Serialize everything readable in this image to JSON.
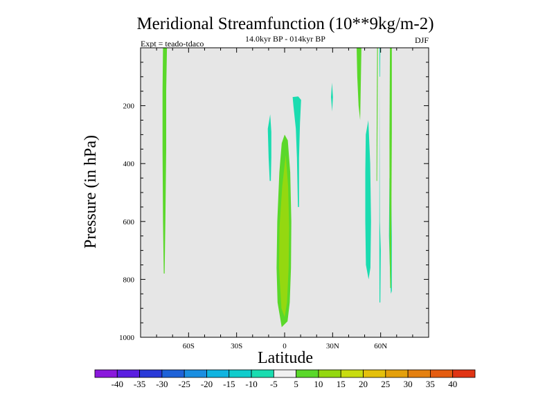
{
  "chart_data": {
    "type": "contour",
    "title": "Meridional Streamfunction (10**9kg/m-2)",
    "subtitle": "14.0kyr BP - 014kyr BP",
    "left_label": "Expt = teado-tdaco",
    "right_label": "DJF",
    "xlabel": "Latitude",
    "ylabel": "Pressure (in hPa)",
    "xlim": [
      -90,
      90
    ],
    "ylim": [
      1000,
      0
    ],
    "x_ticks": [
      {
        "value": -60,
        "label": "60S"
      },
      {
        "value": -30,
        "label": "30S"
      },
      {
        "value": 0,
        "label": "0"
      },
      {
        "value": 30,
        "label": "30N"
      },
      {
        "value": 60,
        "label": "60N"
      }
    ],
    "y_ticks": [
      {
        "value": 200,
        "label": "200"
      },
      {
        "value": 400,
        "label": "400"
      },
      {
        "value": 600,
        "label": "600"
      },
      {
        "value": 800,
        "label": "800"
      },
      {
        "value": 1000,
        "label": "1000"
      }
    ],
    "background_color": "#e6e6e6",
    "contour_levels": [
      -40,
      -35,
      -30,
      -25,
      -20,
      -15,
      -10,
      -5,
      5,
      10,
      15,
      20,
      25,
      30,
      35,
      40
    ],
    "colorbar_labels": [
      "-40",
      "-35",
      "-30",
      "-25",
      "-20",
      "-15",
      "-10",
      "-5",
      "5",
      "10",
      "15",
      "20",
      "25",
      "30",
      "35",
      "40"
    ],
    "colorbar_colors": [
      "#8a18dc",
      "#5a1ee0",
      "#2a3ad8",
      "#1e62d8",
      "#1a8ee0",
      "#10b4e0",
      "#10cccc",
      "#1adcb0",
      "#f0f0f0",
      "#5ad82a",
      "#94d810",
      "#c8dc10",
      "#e4c00c",
      "#e4a00c",
      "#e48010",
      "#e45c10",
      "#e03414"
    ],
    "regions": [
      {
        "name": "region-70s-plus5",
        "color": "#5ad82a",
        "points": [
          [
            -76,
            0
          ],
          [
            -73.5,
            0
          ],
          [
            -74,
            150
          ],
          [
            -74,
            350
          ],
          [
            -74.5,
            600
          ],
          [
            -75,
            780
          ],
          [
            -75.5,
            780
          ],
          [
            -76,
            600
          ],
          [
            -76.3,
            350
          ],
          [
            -76.3,
            150
          ]
        ]
      },
      {
        "name": "region-8s-minus5",
        "color": "#1adcb0",
        "points": [
          [
            -9,
            230
          ],
          [
            -8.3,
            290
          ],
          [
            -8.3,
            380
          ],
          [
            -8.6,
            460
          ],
          [
            -9.3,
            460
          ],
          [
            -10,
            380
          ],
          [
            -10.5,
            280
          ]
        ]
      },
      {
        "name": "region-eq-plus5",
        "color": "#5ad82a",
        "points": [
          [
            0,
            300
          ],
          [
            2,
            320
          ],
          [
            3.5,
            430
          ],
          [
            4.2,
            600
          ],
          [
            4,
            760
          ],
          [
            3.2,
            880
          ],
          [
            1.8,
            945
          ],
          [
            -1.8,
            965
          ],
          [
            -4.4,
            880
          ],
          [
            -5,
            760
          ],
          [
            -4.6,
            600
          ],
          [
            -3.3,
            430
          ],
          [
            -1.8,
            330
          ]
        ]
      },
      {
        "name": "region-eq-plus10",
        "color": "#94d810",
        "points": [
          [
            0.7,
            370
          ],
          [
            2.2,
            480
          ],
          [
            2.8,
            620
          ],
          [
            2.5,
            760
          ],
          [
            1.5,
            880
          ],
          [
            0,
            930
          ],
          [
            -2,
            900
          ],
          [
            -3.5,
            760
          ],
          [
            -3.2,
            620
          ],
          [
            -1.5,
            480
          ]
        ]
      },
      {
        "name": "region-7n-minus5",
        "color": "#1adcb0",
        "points": [
          [
            5,
            170
          ],
          [
            8.5,
            168
          ],
          [
            10.3,
            180
          ],
          [
            9.6,
            260
          ],
          [
            9,
            380
          ],
          [
            9,
            550
          ],
          [
            8.3,
            550
          ],
          [
            7.7,
            380
          ],
          [
            7,
            280
          ],
          [
            5.5,
            200
          ]
        ]
      },
      {
        "name": "region-29n-minus5",
        "color": "#1adcb0",
        "points": [
          [
            29.6,
            120
          ],
          [
            30.2,
            170
          ],
          [
            29.7,
            220
          ],
          [
            29,
            170
          ]
        ]
      },
      {
        "name": "region-46n-plus5",
        "color": "#5ad82a",
        "points": [
          [
            45,
            0
          ],
          [
            48,
            0
          ],
          [
            47.7,
            100
          ],
          [
            47.2,
            250
          ],
          [
            46.2,
            200
          ],
          [
            45.4,
            100
          ]
        ]
      },
      {
        "name": "region-52n-minus5",
        "color": "#1adcb0",
        "points": [
          [
            50.7,
            300
          ],
          [
            52.3,
            250
          ],
          [
            53.5,
            400
          ],
          [
            54,
            600
          ],
          [
            53.6,
            760
          ],
          [
            52.5,
            800
          ],
          [
            50.8,
            750
          ],
          [
            50.4,
            600
          ],
          [
            50.4,
            430
          ]
        ]
      },
      {
        "name": "region-57n-plus5",
        "color": "#5ad82a",
        "points": [
          [
            57.8,
            0
          ],
          [
            58.3,
            0
          ],
          [
            58.1,
            200
          ],
          [
            57.8,
            460
          ],
          [
            57.4,
            460
          ],
          [
            57.6,
            200
          ]
        ]
      },
      {
        "name": "region-59n-minus5",
        "color": "#1adcb0",
        "points": [
          [
            59.3,
            0
          ],
          [
            59.8,
            0
          ],
          [
            59.6,
            100
          ],
          [
            59.3,
            100
          ],
          [
            59.5,
            600
          ],
          [
            60.1,
            700
          ],
          [
            59.8,
            880
          ],
          [
            59.3,
            880
          ],
          [
            59.2,
            700
          ]
        ]
      },
      {
        "name": "region-66n-minus5",
        "color": "#1adcb0",
        "points": [
          [
            65.5,
            450
          ],
          [
            66.5,
            450
          ],
          [
            67,
            650
          ],
          [
            67,
            840
          ],
          [
            66.4,
            850
          ],
          [
            66,
            800
          ],
          [
            65.2,
            650
          ]
        ]
      },
      {
        "name": "region-66n-plus5",
        "color": "#5ad82a",
        "points": [
          [
            65.8,
            0
          ],
          [
            67,
            0
          ],
          [
            67,
            300
          ],
          [
            66.6,
            700
          ],
          [
            66.4,
            830
          ],
          [
            66,
            830
          ],
          [
            65.6,
            700
          ],
          [
            65.5,
            300
          ]
        ]
      }
    ]
  }
}
